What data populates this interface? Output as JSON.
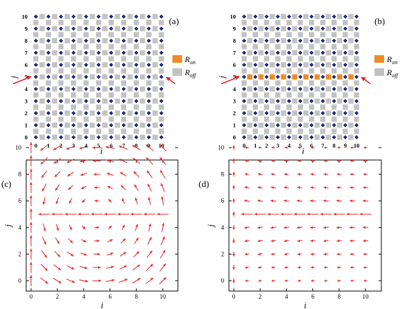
{
  "panels": {
    "a": {
      "label": "(a)",
      "ticks": [
        "0",
        "1",
        "2",
        "3",
        "4",
        "5",
        "6",
        "7",
        "8",
        "9",
        "10"
      ],
      "xlabel": "i",
      "ylabel": "j",
      "legend": {
        "on_main": "R",
        "on_sub": "on",
        "off_main": "R",
        "off_sub": "off"
      },
      "highlight_row": null
    },
    "b": {
      "label": "(b)",
      "ticks": [
        "0",
        "1",
        "2",
        "3",
        "4",
        "5",
        "6",
        "7",
        "8",
        "9",
        "10"
      ],
      "xlabel": "i",
      "ylabel": "j",
      "legend": {
        "on_main": "R",
        "on_sub": "on",
        "off_main": "R",
        "off_sub": "off"
      },
      "highlight_row": 5
    },
    "c": {
      "label": "(c)",
      "xticks": [
        "0",
        "2",
        "4",
        "6",
        "8",
        "10"
      ],
      "yticks": [
        "0",
        "2",
        "4",
        "6",
        "8",
        "10"
      ],
      "xlabel": "i",
      "ylabel": "j"
    },
    "d": {
      "label": "(d)",
      "xticks": [
        "0",
        "2",
        "4",
        "6",
        "8",
        "10"
      ],
      "yticks": [
        "0",
        "2",
        "4",
        "6",
        "8",
        "10"
      ],
      "xlabel": "i",
      "ylabel": "j"
    }
  },
  "colors": {
    "grid_square": "#c2c2c2",
    "node": "#1a237e",
    "on_resistor": "#f08a24",
    "arrow": "#e8302f",
    "indicator_arrow": "#e3252b"
  }
}
